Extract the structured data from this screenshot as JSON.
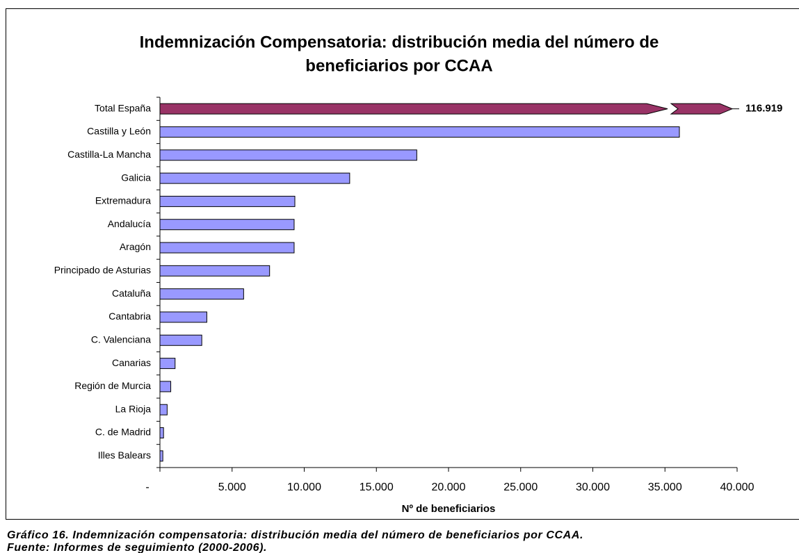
{
  "chart_data": {
    "type": "bar",
    "orientation": "horizontal",
    "title": [
      "Indemnización Compensatoria: distribución media del número de",
      "beneficiarios por CCAA"
    ],
    "categories": [
      "Total España",
      "Castilla y León",
      "Castilla-La Mancha",
      "Galicia",
      "Extremadura",
      "Andalucía",
      "Aragón",
      "Principado de Asturias",
      "Cataluña",
      "Cantabria",
      "C. Valenciana",
      "Canarias",
      "Región de Murcia",
      "La Rioja",
      "C. de Madrid",
      "Illes Balears"
    ],
    "values": [
      116919,
      36000,
      17800,
      13150,
      9350,
      9300,
      9300,
      7600,
      5800,
      3250,
      2900,
      1050,
      750,
      500,
      250,
      200
    ],
    "value_labels": [
      "116.919",
      null,
      null,
      null,
      null,
      null,
      null,
      null,
      null,
      null,
      null,
      null,
      null,
      null,
      null,
      null
    ],
    "colors": [
      "#993366",
      "#9999ff",
      "#9999ff",
      "#9999ff",
      "#9999ff",
      "#9999ff",
      "#9999ff",
      "#9999ff",
      "#9999ff",
      "#9999ff",
      "#9999ff",
      "#9999ff",
      "#9999ff",
      "#9999ff",
      "#9999ff",
      "#9999ff"
    ],
    "xlim": [
      0,
      40000
    ],
    "xticks": [
      {
        "value": 0,
        "label": "-"
      },
      {
        "value": 5000,
        "label": "5.000"
      },
      {
        "value": 10000,
        "label": "10.000"
      },
      {
        "value": 15000,
        "label": "15.000"
      },
      {
        "value": 20000,
        "label": "20.000"
      },
      {
        "value": 25000,
        "label": "25.000"
      },
      {
        "value": 30000,
        "label": "30.000"
      },
      {
        "value": 35000,
        "label": "35.000"
      },
      {
        "value": 40000,
        "label": "40.000"
      }
    ],
    "xlabel": "Nº de beneficiarios"
  },
  "caption": [
    "Gráfico 16.  Indemnización compensatoria: distribución media del número de beneficiarios por CCAA.",
    "Fuente: Informes de seguimiento (2000-2006)."
  ]
}
